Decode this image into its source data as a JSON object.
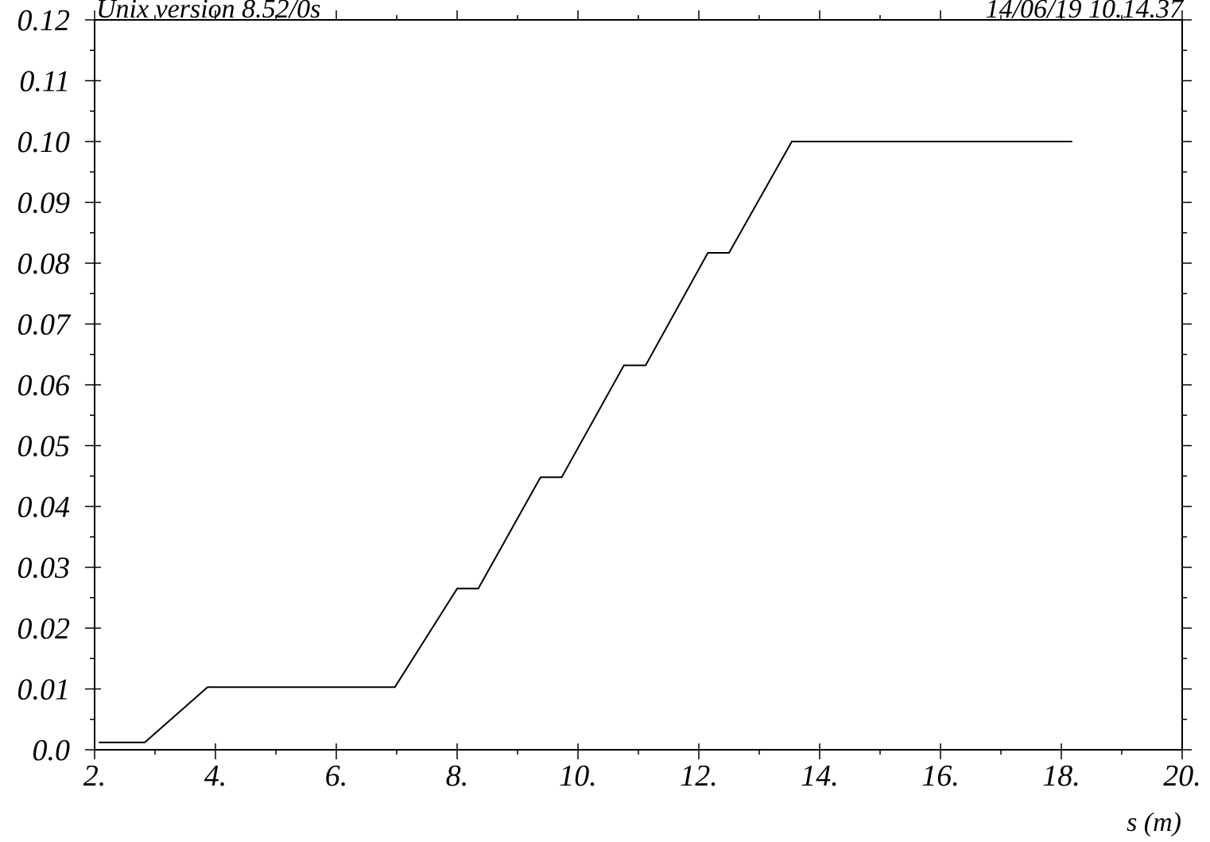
{
  "header": {
    "left": "Unix version 8.52/0s",
    "right": "14/06/19  10.14.37"
  },
  "chart_data": {
    "type": "line",
    "title": "",
    "xlabel": "s (m)",
    "ylabel": "",
    "xlim": [
      2,
      20
    ],
    "ylim": [
      0,
      0.12
    ],
    "grid": false,
    "x_ticks": [
      {
        "value": 2,
        "label": "2."
      },
      {
        "value": 4,
        "label": "4."
      },
      {
        "value": 6,
        "label": "6."
      },
      {
        "value": 8,
        "label": "8."
      },
      {
        "value": 10,
        "label": "10."
      },
      {
        "value": 12,
        "label": "12."
      },
      {
        "value": 14,
        "label": "14."
      },
      {
        "value": 16,
        "label": "16."
      },
      {
        "value": 18,
        "label": "18."
      },
      {
        "value": 20,
        "label": "20."
      }
    ],
    "y_ticks": [
      {
        "value": 0.0,
        "label": "0.0"
      },
      {
        "value": 0.01,
        "label": "0.01"
      },
      {
        "value": 0.02,
        "label": "0.02"
      },
      {
        "value": 0.03,
        "label": "0.03"
      },
      {
        "value": 0.04,
        "label": "0.04"
      },
      {
        "value": 0.05,
        "label": "0.05"
      },
      {
        "value": 0.06,
        "label": "0.06"
      },
      {
        "value": 0.07,
        "label": "0.07"
      },
      {
        "value": 0.08,
        "label": "0.08"
      },
      {
        "value": 0.09,
        "label": "0.09"
      },
      {
        "value": 0.1,
        "label": "0.10"
      },
      {
        "value": 0.11,
        "label": "0.11"
      },
      {
        "value": 0.12,
        "label": "0.12"
      }
    ],
    "series": [
      {
        "color": "#000000",
        "x": [
          2.07,
          2.83,
          3.87,
          6.97,
          8.0,
          8.35,
          9.38,
          9.73,
          10.76,
          11.12,
          12.15,
          12.5,
          13.54,
          18.18
        ],
        "y": [
          0.0012,
          0.0012,
          0.0103,
          0.0103,
          0.0265,
          0.0265,
          0.0448,
          0.0448,
          0.0632,
          0.0632,
          0.0817,
          0.0817,
          0.1,
          0.1
        ]
      }
    ]
  }
}
